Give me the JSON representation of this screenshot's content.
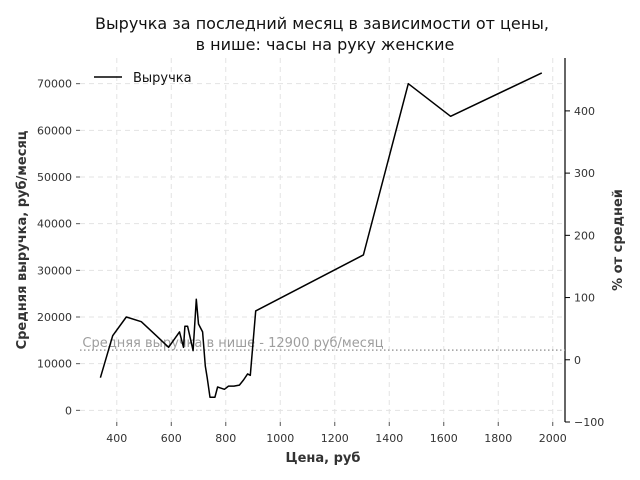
{
  "chart_data": {
    "type": "line",
    "title": [
      "Выручка за последний месяц в зависимости от цены,",
      "в нише: часы на руку женские"
    ],
    "xlabel": "Цена, руб",
    "ylabel": "Средняя выручка, руб/месяц",
    "y2label": "% от средней",
    "xlim": [
      265,
      2045
    ],
    "ylim": [
      -2500,
      75500
    ],
    "y2lim": [
      -100,
      485
    ],
    "xticks": [
      400,
      600,
      800,
      1000,
      1200,
      1400,
      1600,
      1800,
      2000
    ],
    "yticks": [
      0,
      10000,
      20000,
      30000,
      40000,
      50000,
      60000,
      70000
    ],
    "y2ticks": [
      -100,
      0,
      100,
      200,
      300,
      400
    ],
    "grid": true,
    "legend_position": "top-left",
    "series": [
      {
        "name": "Выручка",
        "color": "#000000",
        "x": [
          340,
          385,
          435,
          490,
          545,
          590,
          630,
          645,
          650,
          660,
          680,
          692,
          700,
          715,
          725,
          732,
          742,
          760,
          770,
          780,
          795,
          810,
          830,
          850,
          865,
          880,
          890,
          910,
          1305,
          1470,
          1625,
          1960
        ],
        "y": [
          7000,
          16000,
          20000,
          19000,
          16000,
          13500,
          16800,
          13500,
          18000,
          18000,
          12800,
          23800,
          18500,
          16800,
          9500,
          7000,
          2800,
          2800,
          5000,
          4800,
          4500,
          5200,
          5200,
          5400,
          6500,
          7800,
          7500,
          21300,
          33300,
          70000,
          63000,
          72300
        ]
      }
    ],
    "reference_line": {
      "y": 12900,
      "label": "Средняя выручка в нише - 12900 руб/месяц",
      "color": "#9e9e9e"
    }
  }
}
